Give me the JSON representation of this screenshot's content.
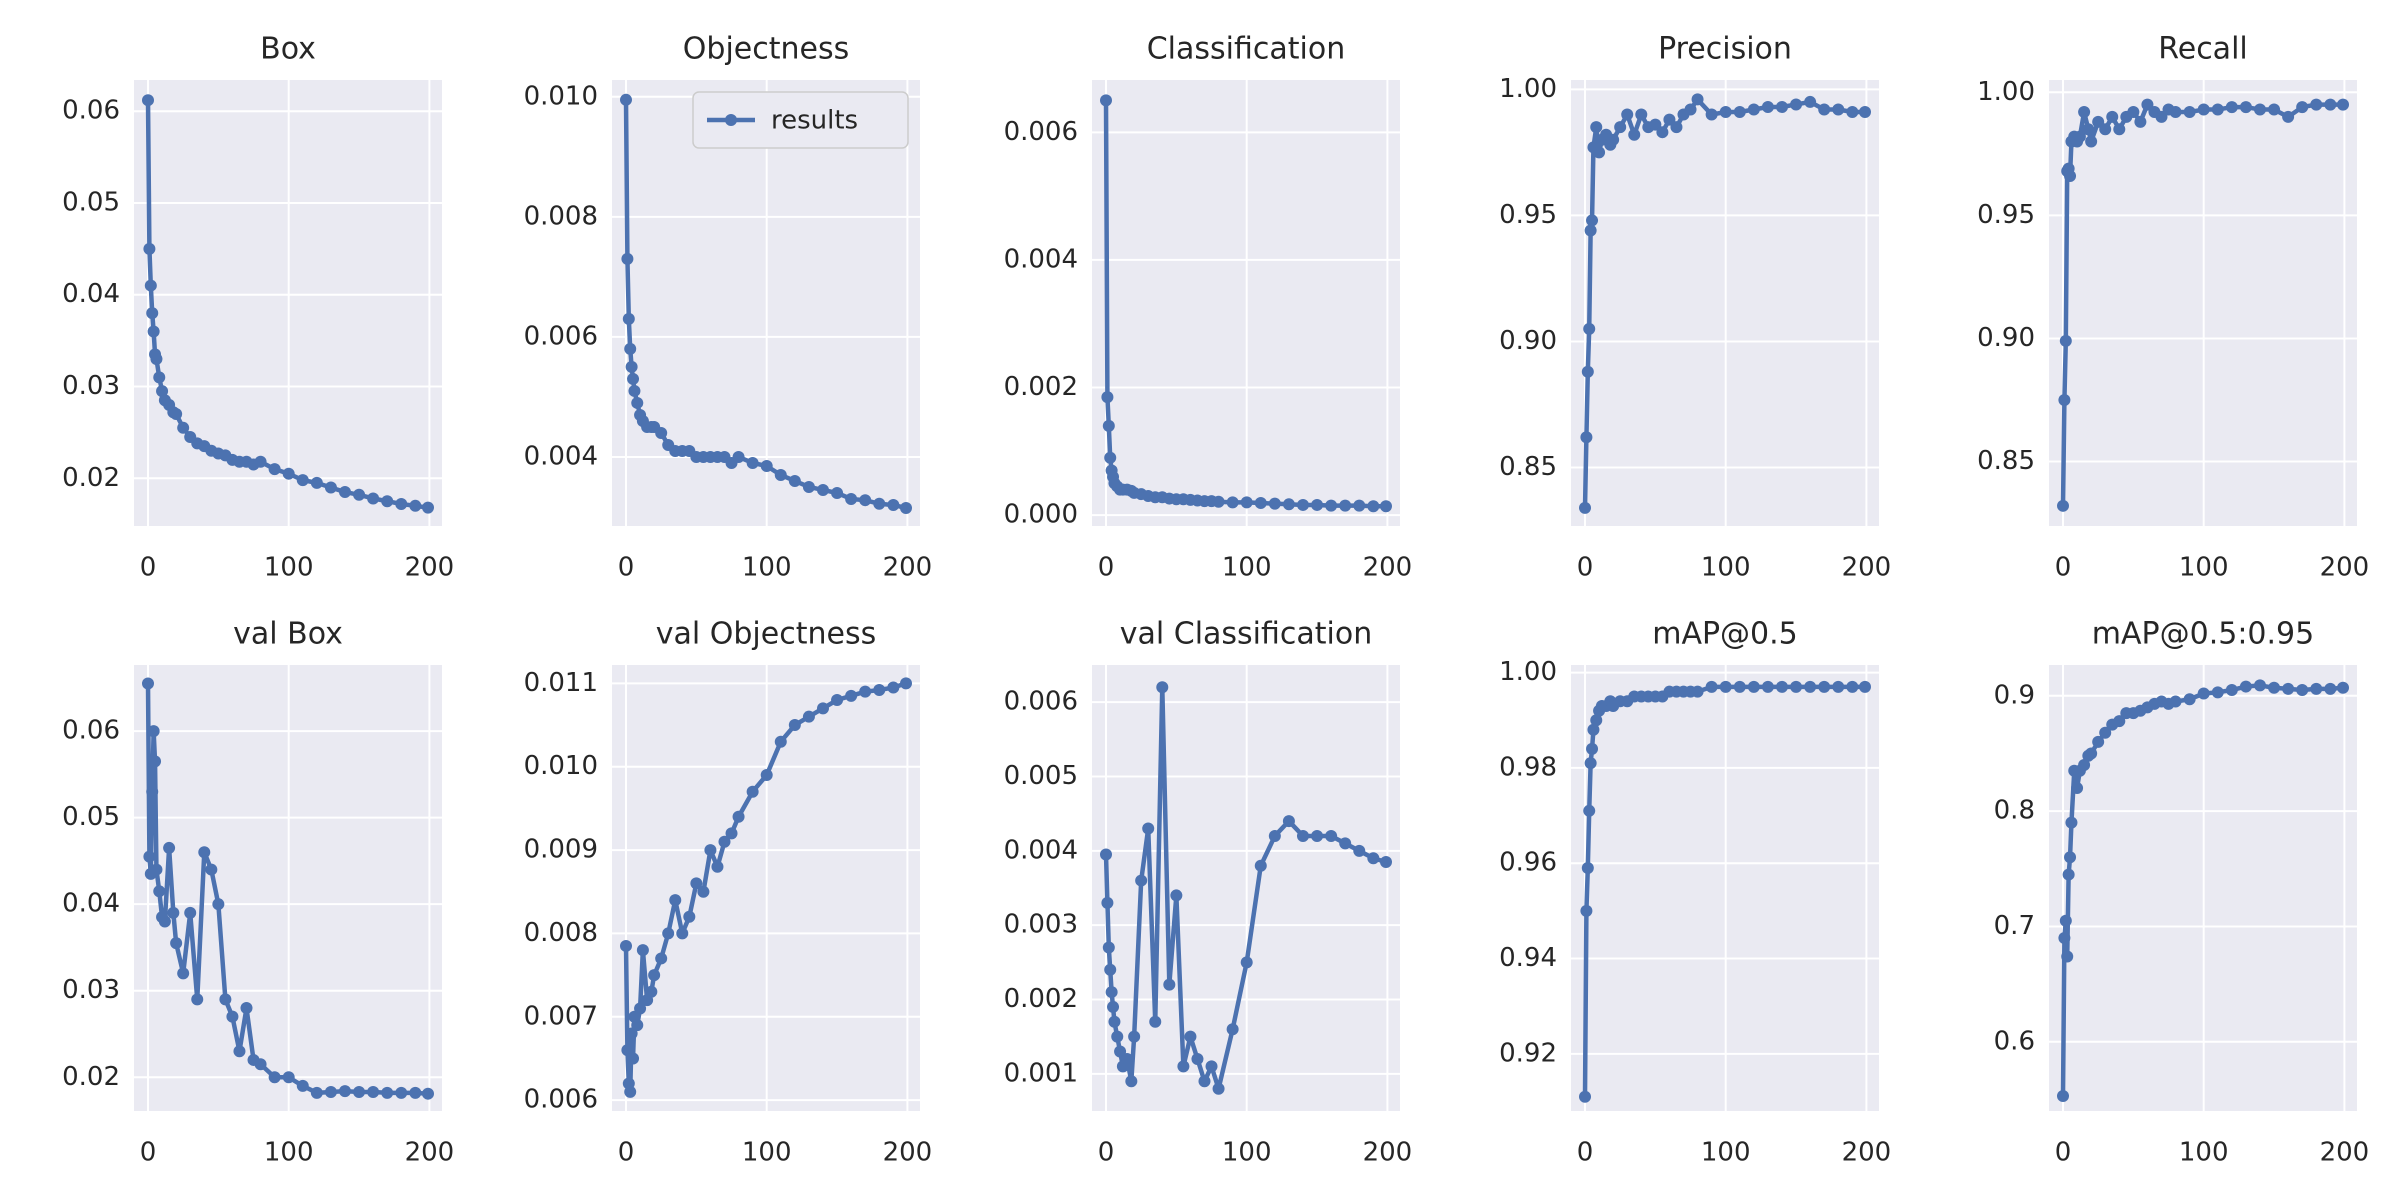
{
  "chart_data": [
    {
      "type": "line",
      "title": "Box",
      "color": "#4c72b0",
      "grid": true,
      "x": [
        0,
        1,
        2,
        3,
        4,
        5,
        6,
        8,
        10,
        12,
        15,
        18,
        20,
        25,
        30,
        35,
        40,
        45,
        50,
        55,
        60,
        65,
        70,
        75,
        80,
        90,
        100,
        110,
        120,
        130,
        140,
        150,
        160,
        170,
        180,
        190,
        199
      ],
      "values": [
        0.0612,
        0.045,
        0.041,
        0.038,
        0.036,
        0.0335,
        0.033,
        0.031,
        0.0295,
        0.0285,
        0.028,
        0.0272,
        0.027,
        0.0255,
        0.0245,
        0.0238,
        0.0235,
        0.023,
        0.0227,
        0.0225,
        0.022,
        0.0218,
        0.0218,
        0.0215,
        0.0218,
        0.021,
        0.0205,
        0.0198,
        0.0195,
        0.019,
        0.0185,
        0.0182,
        0.0178,
        0.0175,
        0.0172,
        0.017,
        0.0168
      ],
      "xlim": [
        -9.95,
        208.95
      ],
      "xticks": [
        0,
        100,
        200
      ],
      "ylim": [
        0.0148,
        0.0634
      ],
      "yticks": [
        0.02,
        0.03,
        0.04,
        0.05,
        0.06
      ]
    },
    {
      "type": "line",
      "title": "Objectness",
      "grid": true,
      "legend": "upper right",
      "x": [
        0,
        1,
        2,
        3,
        4,
        5,
        6,
        8,
        10,
        12,
        15,
        18,
        20,
        25,
        30,
        35,
        40,
        45,
        50,
        55,
        60,
        65,
        70,
        75,
        80,
        90,
        100,
        110,
        120,
        130,
        140,
        150,
        160,
        170,
        180,
        190,
        199
      ],
      "series": [
        {
          "name": "results",
          "color": "#4c72b0",
          "values": [
            0.00995,
            0.0073,
            0.0063,
            0.0058,
            0.0055,
            0.0053,
            0.0051,
            0.0049,
            0.0047,
            0.0046,
            0.0045,
            0.0045,
            0.0045,
            0.0044,
            0.0042,
            0.0041,
            0.0041,
            0.0041,
            0.004,
            0.004,
            0.004,
            0.004,
            0.004,
            0.0039,
            0.004,
            0.0039,
            0.00385,
            0.0037,
            0.0036,
            0.0035,
            0.00345,
            0.0034,
            0.0033,
            0.00328,
            0.00322,
            0.0032,
            0.00315
          ]
        }
      ],
      "xlim": [
        -9.95,
        208.95
      ],
      "xticks": [
        0,
        100,
        200
      ],
      "ylim": [
        0.00285,
        0.01028
      ],
      "yticks": [
        0.004,
        0.006,
        0.008,
        {
          "value": 0.01,
          "label": "0.010"
        }
      ]
    },
    {
      "type": "line",
      "title": "Classification",
      "color": "#4c72b0",
      "grid": true,
      "x": [
        0,
        1,
        2,
        3,
        4,
        5,
        6,
        8,
        10,
        12,
        15,
        18,
        20,
        25,
        30,
        35,
        40,
        45,
        50,
        55,
        60,
        65,
        70,
        75,
        80,
        90,
        100,
        110,
        120,
        130,
        140,
        150,
        160,
        170,
        180,
        190,
        199
      ],
      "values": [
        0.0065,
        0.00185,
        0.0014,
        0.0009,
        0.0007,
        0.0006,
        0.0005,
        0.00045,
        0.0004,
        0.0004,
        0.0004,
        0.00038,
        0.00035,
        0.00033,
        0.0003,
        0.00028,
        0.00028,
        0.00026,
        0.00025,
        0.00025,
        0.00024,
        0.00023,
        0.00022,
        0.00022,
        0.00021,
        0.0002,
        0.0002,
        0.00019,
        0.00018,
        0.00017,
        0.00016,
        0.00016,
        0.00015,
        0.00015,
        0.00015,
        0.00014,
        0.00014
      ],
      "xlim": [
        -9.95,
        208.95
      ],
      "xticks": [
        0,
        100,
        200
      ],
      "ylim": [
        -0.00017,
        0.00682
      ],
      "yticks": [
        {
          "value": 0,
          "label": "0.000"
        },
        0.002,
        0.004,
        0.006
      ]
    },
    {
      "type": "line",
      "title": "Precision",
      "color": "#4c72b0",
      "grid": true,
      "x": [
        0,
        1,
        2,
        3,
        4,
        5,
        6,
        8,
        10,
        12,
        15,
        18,
        20,
        25,
        30,
        35,
        40,
        45,
        50,
        55,
        60,
        65,
        70,
        75,
        80,
        90,
        100,
        110,
        120,
        130,
        140,
        150,
        160,
        170,
        180,
        190,
        199
      ],
      "values": [
        0.834,
        0.862,
        0.888,
        0.905,
        0.944,
        0.948,
        0.977,
        0.985,
        0.975,
        0.98,
        0.982,
        0.978,
        0.98,
        0.985,
        0.99,
        0.982,
        0.99,
        0.985,
        0.986,
        0.983,
        0.988,
        0.985,
        0.99,
        0.992,
        0.996,
        0.99,
        0.991,
        0.991,
        0.992,
        0.993,
        0.993,
        0.994,
        0.995,
        0.992,
        0.992,
        0.991,
        0.991
      ],
      "xlim": [
        -9.95,
        208.95
      ],
      "xticks": [
        0,
        100,
        200
      ],
      "ylim": [
        0.8268,
        1.0037
      ],
      "yticks": [
        0.85,
        {
          "value": 0.9,
          "label": "0.90"
        },
        0.95,
        {
          "value": 1,
          "label": "1.00"
        }
      ]
    },
    {
      "type": "line",
      "title": "Recall",
      "color": "#4c72b0",
      "grid": true,
      "x": [
        0,
        1,
        2,
        3,
        4,
        5,
        6,
        8,
        10,
        12,
        15,
        18,
        20,
        25,
        30,
        35,
        40,
        45,
        50,
        55,
        60,
        65,
        70,
        75,
        80,
        90,
        100,
        110,
        120,
        130,
        140,
        150,
        160,
        170,
        180,
        190,
        199
      ],
      "values": [
        0.832,
        0.875,
        0.899,
        0.968,
        0.969,
        0.966,
        0.98,
        0.982,
        0.98,
        0.982,
        0.992,
        0.985,
        0.98,
        0.988,
        0.985,
        0.99,
        0.985,
        0.99,
        0.992,
        0.988,
        0.995,
        0.992,
        0.99,
        0.993,
        0.992,
        0.992,
        0.993,
        0.993,
        0.994,
        0.994,
        0.993,
        0.993,
        0.99,
        0.994,
        0.995,
        0.995,
        0.995
      ],
      "xlim": [
        -9.95,
        208.95
      ],
      "xticks": [
        0,
        100,
        200
      ],
      "ylim": [
        0.8238,
        1.005
      ],
      "yticks": [
        0.85,
        {
          "value": 0.9,
          "label": "0.90"
        },
        0.95,
        {
          "value": 1,
          "label": "1.00"
        }
      ]
    },
    {
      "type": "line",
      "title": "val Box",
      "color": "#4c72b0",
      "grid": true,
      "x": [
        0,
        1,
        2,
        3,
        4,
        5,
        6,
        8,
        10,
        12,
        15,
        18,
        20,
        25,
        30,
        35,
        40,
        45,
        50,
        55,
        60,
        65,
        70,
        75,
        80,
        90,
        100,
        110,
        120,
        130,
        140,
        150,
        160,
        170,
        180,
        190,
        199
      ],
      "values": [
        0.0655,
        0.0455,
        0.0435,
        0.053,
        0.06,
        0.0565,
        0.044,
        0.0415,
        0.0385,
        0.038,
        0.0465,
        0.039,
        0.0355,
        0.032,
        0.039,
        0.029,
        0.046,
        0.044,
        0.04,
        0.029,
        0.027,
        0.023,
        0.028,
        0.022,
        0.0215,
        0.02,
        0.02,
        0.019,
        0.0182,
        0.0183,
        0.0184,
        0.0183,
        0.0183,
        0.0182,
        0.0182,
        0.0182,
        0.0181
      ],
      "xlim": [
        -9.95,
        208.95
      ],
      "xticks": [
        0,
        100,
        200
      ],
      "ylim": [
        0.0161,
        0.06764
      ],
      "yticks": [
        0.02,
        0.03,
        0.04,
        0.05,
        0.06
      ]
    },
    {
      "type": "line",
      "title": "val Objectness",
      "color": "#4c72b0",
      "grid": true,
      "x": [
        0,
        1,
        2,
        3,
        4,
        5,
        6,
        8,
        10,
        12,
        15,
        18,
        20,
        25,
        30,
        35,
        40,
        45,
        50,
        55,
        60,
        65,
        70,
        75,
        80,
        90,
        100,
        110,
        120,
        130,
        140,
        150,
        160,
        170,
        180,
        190,
        199
      ],
      "values": [
        0.00785,
        0.0066,
        0.0062,
        0.0061,
        0.0068,
        0.0065,
        0.007,
        0.0069,
        0.0071,
        0.0078,
        0.0072,
        0.0073,
        0.0075,
        0.0077,
        0.008,
        0.0084,
        0.008,
        0.0082,
        0.0086,
        0.0085,
        0.009,
        0.0088,
        0.0091,
        0.0092,
        0.0094,
        0.0097,
        0.0099,
        0.0103,
        0.0105,
        0.0106,
        0.0107,
        0.0108,
        0.01085,
        0.0109,
        0.01092,
        0.01095,
        0.011
      ],
      "xlim": [
        -9.95,
        208.95
      ],
      "xticks": [
        0,
        100,
        200
      ],
      "ylim": [
        0.00587,
        0.01122
      ],
      "yticks": [
        0.006,
        0.007,
        0.008,
        0.009,
        {
          "value": 0.01,
          "label": "0.010"
        },
        0.011
      ]
    },
    {
      "type": "line",
      "title": "val Classification",
      "color": "#4c72b0",
      "grid": true,
      "x": [
        0,
        1,
        2,
        3,
        4,
        5,
        6,
        8,
        10,
        12,
        15,
        18,
        20,
        25,
        30,
        35,
        40,
        45,
        50,
        55,
        60,
        65,
        70,
        75,
        80,
        90,
        100,
        110,
        120,
        130,
        140,
        150,
        160,
        170,
        180,
        190,
        199
      ],
      "values": [
        0.00395,
        0.0033,
        0.0027,
        0.0024,
        0.0021,
        0.0019,
        0.0017,
        0.0015,
        0.0013,
        0.0011,
        0.0012,
        0.0009,
        0.0015,
        0.0036,
        0.0043,
        0.0017,
        0.0062,
        0.0022,
        0.0034,
        0.0011,
        0.0015,
        0.0012,
        0.0009,
        0.0011,
        0.0008,
        0.0016,
        0.0025,
        0.0038,
        0.0042,
        0.0044,
        0.0042,
        0.0042,
        0.0042,
        0.0041,
        0.004,
        0.0039,
        0.00385
      ],
      "xlim": [
        -9.95,
        208.95
      ],
      "xticks": [
        0,
        100,
        200
      ],
      "ylim": [
        0.0005,
        0.0065
      ],
      "yticks": [
        0.001,
        0.002,
        0.003,
        0.004,
        0.005,
        0.006
      ]
    },
    {
      "type": "line",
      "title": "mAP@0.5",
      "color": "#4c72b0",
      "grid": true,
      "x": [
        0,
        1,
        2,
        3,
        4,
        5,
        6,
        8,
        10,
        12,
        15,
        18,
        20,
        25,
        30,
        35,
        40,
        45,
        50,
        55,
        60,
        65,
        70,
        75,
        80,
        90,
        100,
        110,
        120,
        130,
        140,
        150,
        160,
        170,
        180,
        190,
        199
      ],
      "values": [
        0.911,
        0.95,
        0.959,
        0.971,
        0.981,
        0.984,
        0.988,
        0.99,
        0.992,
        0.993,
        0.993,
        0.994,
        0.993,
        0.994,
        0.994,
        0.995,
        0.995,
        0.995,
        0.995,
        0.995,
        0.996,
        0.996,
        0.996,
        0.996,
        0.996,
        0.997,
        0.997,
        0.997,
        0.997,
        0.997,
        0.997,
        0.997,
        0.997,
        0.997,
        0.997,
        0.997,
        0.997
      ],
      "xlim": [
        -9.95,
        208.95
      ],
      "xticks": [
        0,
        100,
        200
      ],
      "ylim": [
        0.908,
        1.0016
      ],
      "yticks": [
        0.92,
        0.94,
        0.96,
        0.98,
        {
          "value": 1,
          "label": "1.00"
        }
      ]
    },
    {
      "type": "line",
      "title": "mAP@0.5:0.95",
      "color": "#4c72b0",
      "grid": true,
      "x": [
        0,
        1,
        2,
        3,
        4,
        5,
        6,
        8,
        10,
        12,
        15,
        18,
        20,
        25,
        30,
        35,
        40,
        45,
        50,
        55,
        60,
        65,
        70,
        75,
        80,
        90,
        100,
        110,
        120,
        130,
        140,
        150,
        160,
        170,
        180,
        190,
        199
      ],
      "values": [
        0.553,
        0.69,
        0.705,
        0.674,
        0.745,
        0.76,
        0.79,
        0.835,
        0.82,
        0.835,
        0.84,
        0.848,
        0.85,
        0.86,
        0.868,
        0.875,
        0.878,
        0.885,
        0.885,
        0.887,
        0.89,
        0.893,
        0.895,
        0.893,
        0.895,
        0.897,
        0.902,
        0.903,
        0.905,
        0.908,
        0.909,
        0.907,
        0.906,
        0.905,
        0.906,
        0.906,
        0.907
      ],
      "xlim": [
        -9.95,
        208.95
      ],
      "xticks": [
        0,
        100,
        200
      ],
      "ylim": [
        0.54,
        0.9267
      ],
      "yticks": [
        0.6,
        0.7,
        0.8,
        0.9
      ]
    }
  ]
}
